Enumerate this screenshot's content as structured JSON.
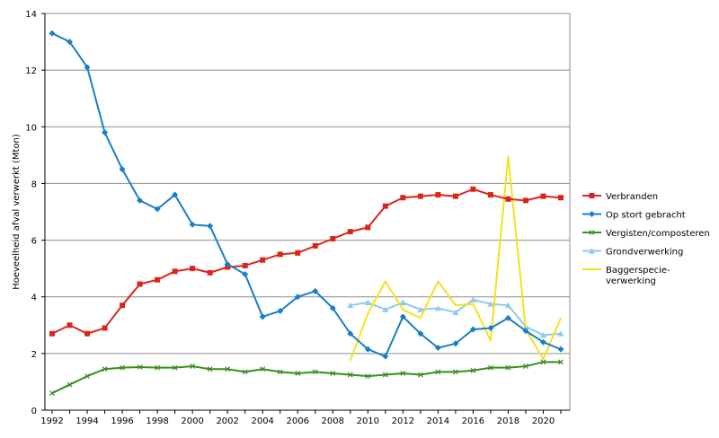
{
  "chart_data": {
    "type": "line",
    "title": "",
    "xlabel": "",
    "ylabel": "Hoeveelheid afval verwerkt (Mton)",
    "xlim": [
      1992,
      2021
    ],
    "ylim": [
      0,
      14
    ],
    "xticks": [
      1992,
      1994,
      1996,
      1998,
      2000,
      2002,
      2004,
      2006,
      2008,
      2010,
      2012,
      2014,
      2016,
      2018,
      2020
    ],
    "yticks": [
      0,
      2,
      4,
      6,
      8,
      10,
      12,
      14
    ],
    "grid": "horizontal",
    "legend_position": "right",
    "series": [
      {
        "name": "Verbranden",
        "color": "#d9261c",
        "marker": "square",
        "x": [
          1992,
          1993,
          1994,
          1995,
          1996,
          1997,
          1998,
          1999,
          2000,
          2001,
          2002,
          2003,
          2004,
          2005,
          2006,
          2007,
          2008,
          2009,
          2010,
          2011,
          2012,
          2013,
          2014,
          2015,
          2016,
          2017,
          2018,
          2019,
          2020,
          2021
        ],
        "values": [
          2.7,
          3.0,
          2.7,
          2.9,
          3.7,
          4.45,
          4.6,
          4.9,
          5.0,
          4.85,
          5.05,
          5.1,
          5.3,
          5.5,
          5.55,
          5.8,
          6.05,
          6.3,
          6.45,
          7.2,
          7.5,
          7.55,
          7.6,
          7.55,
          7.8,
          7.6,
          7.45,
          7.4,
          7.55,
          7.5
        ]
      },
      {
        "name": "Op stort gebracht",
        "color": "#1a7fc4",
        "marker": "diamond",
        "x": [
          1992,
          1993,
          1994,
          1995,
          1996,
          1997,
          1998,
          1999,
          2000,
          2001,
          2002,
          2003,
          2004,
          2005,
          2006,
          2007,
          2008,
          2009,
          2010,
          2011,
          2012,
          2013,
          2014,
          2015,
          2016,
          2017,
          2018,
          2019,
          2020,
          2021
        ],
        "values": [
          13.3,
          13.0,
          12.1,
          9.8,
          8.5,
          7.4,
          7.1,
          7.6,
          6.55,
          6.5,
          5.15,
          4.8,
          3.3,
          3.5,
          4.0,
          4.2,
          3.6,
          2.7,
          2.15,
          1.9,
          3.3,
          2.7,
          2.2,
          2.35,
          2.85,
          2.9,
          3.25,
          2.8,
          2.4,
          2.15
        ]
      },
      {
        "name": "Vergisten/composteren",
        "color": "#3a8c1c",
        "marker": "x",
        "x": [
          1992,
          1993,
          1994,
          1995,
          1996,
          1997,
          1998,
          1999,
          2000,
          2001,
          2002,
          2003,
          2004,
          2005,
          2006,
          2007,
          2008,
          2009,
          2010,
          2011,
          2012,
          2013,
          2014,
          2015,
          2016,
          2017,
          2018,
          2019,
          2020,
          2021
        ],
        "values": [
          0.6,
          0.9,
          1.2,
          1.45,
          1.5,
          1.52,
          1.5,
          1.5,
          1.55,
          1.45,
          1.45,
          1.35,
          1.45,
          1.35,
          1.3,
          1.35,
          1.3,
          1.25,
          1.2,
          1.25,
          1.3,
          1.25,
          1.35,
          1.35,
          1.4,
          1.5,
          1.5,
          1.55,
          1.7,
          1.7
        ]
      },
      {
        "name": "Grondverwerking",
        "color": "#8fcbea",
        "marker": "triangle",
        "x": [
          2009,
          2010,
          2011,
          2012,
          2013,
          2014,
          2015,
          2016,
          2017,
          2018,
          2019,
          2020,
          2021
        ],
        "values": [
          3.7,
          3.8,
          3.55,
          3.8,
          3.55,
          3.6,
          3.45,
          3.9,
          3.75,
          3.7,
          2.95,
          2.65,
          2.7
        ]
      },
      {
        "name": "Baggerspecie-verwerking",
        "color": "#f5e11d",
        "marker": "none",
        "x": [
          2009,
          2010,
          2011,
          2012,
          2013,
          2014,
          2015,
          2016,
          2017,
          2018,
          2019,
          2020,
          2021
        ],
        "values": [
          1.75,
          3.4,
          4.55,
          3.55,
          3.25,
          4.55,
          3.7,
          3.75,
          2.45,
          8.95,
          2.85,
          1.8,
          3.25
        ]
      }
    ],
    "legend_entries": [
      "Verbranden",
      "Op stort gebracht",
      "Vergisten/composteren",
      "Grondverwerking",
      "Baggerspecie-",
      "verwerking"
    ]
  }
}
